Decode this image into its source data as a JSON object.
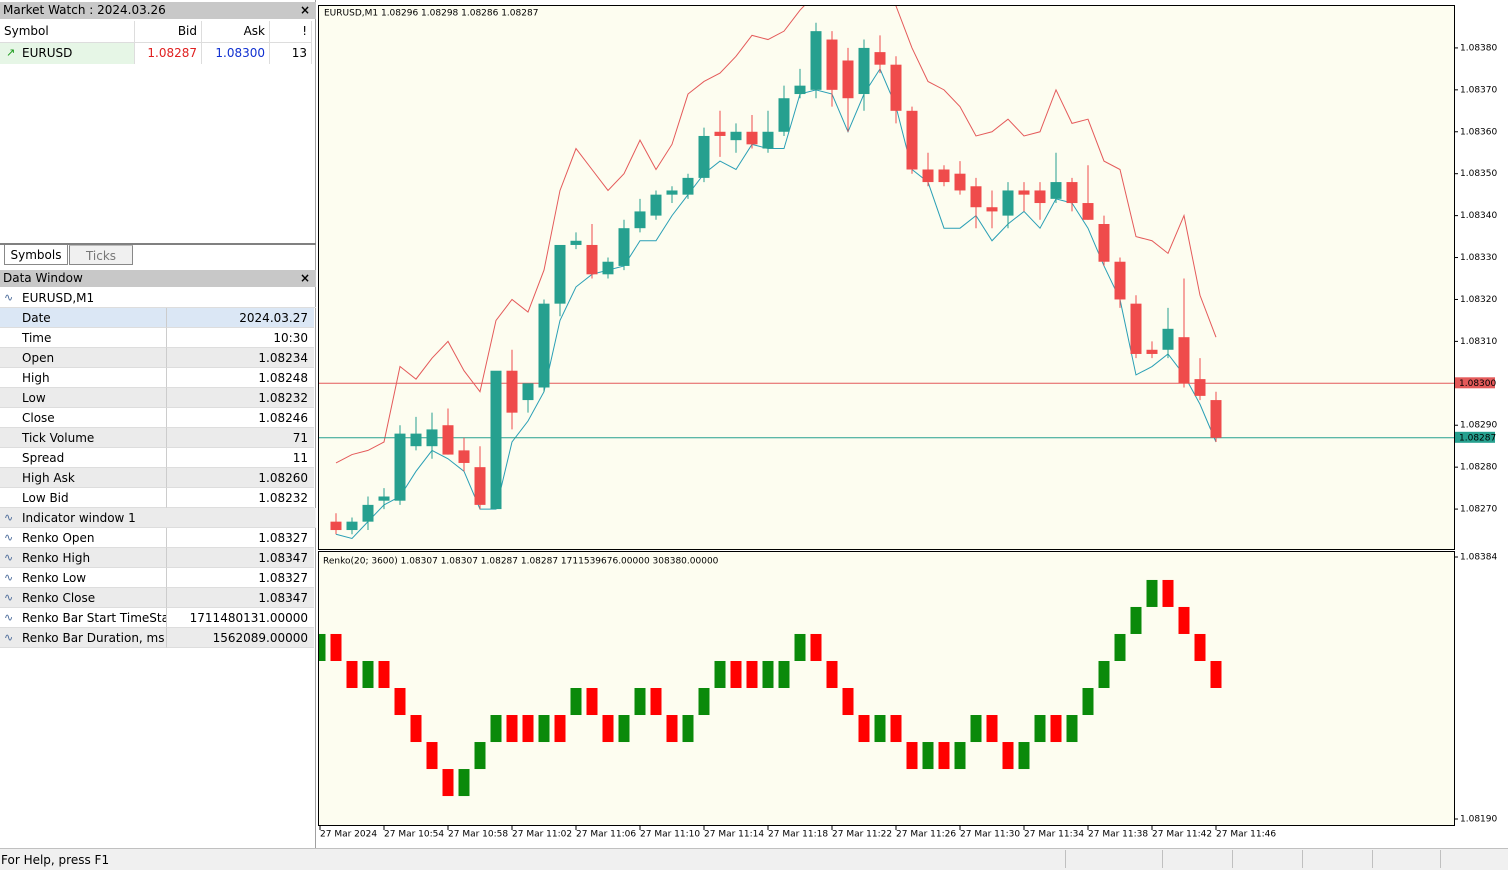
{
  "market_watch": {
    "title": "Market Watch : 2024.03.26",
    "columns": [
      "Symbol",
      "Bid",
      "Ask",
      "!"
    ],
    "row": [
      "EURUSD",
      "1.08287",
      "1.08300",
      "13"
    ],
    "tabs": [
      "Symbols",
      "Ticks"
    ]
  },
  "data_window": {
    "title": "Data Window",
    "symbol": "EURUSD,M1",
    "rows": [
      [
        "Date",
        "2024.03.27"
      ],
      [
        "Time",
        "10:30"
      ],
      [
        "Open",
        "1.08234"
      ],
      [
        "High",
        "1.08248"
      ],
      [
        "Low",
        "1.08232"
      ],
      [
        "Close",
        "1.08246"
      ],
      [
        "Tick Volume",
        "71"
      ],
      [
        "Spread",
        "11"
      ],
      [
        "High Ask",
        "1.08260"
      ],
      [
        "Low Bid",
        "1.08232"
      ]
    ],
    "indicator": "Indicator window 1",
    "indicator_rows": [
      [
        "Renko Open",
        "1.08327"
      ],
      [
        "Renko High",
        "1.08347"
      ],
      [
        "Renko Low",
        "1.08327"
      ],
      [
        "Renko Close",
        "1.08347"
      ],
      [
        "Renko Bar Start TimeSta...",
        "1711480131.00000"
      ],
      [
        "Renko Bar Duration, ms",
        "1562089.00000"
      ]
    ]
  },
  "chart": {
    "type": "candlestick",
    "label": "EURUSD,M1  1.08296 1.08298 1.08286 1.08287",
    "ylim": [
      1.0826,
      1.0839
    ],
    "yticks": [
      {
        "value": 1.0838,
        "label": "1.08380"
      },
      {
        "value": 1.0837,
        "label": "1.08370"
      },
      {
        "value": 1.0836,
        "label": "1.08360"
      },
      {
        "value": 1.0835,
        "label": "1.08350"
      },
      {
        "value": 1.0834,
        "label": "1.08340"
      },
      {
        "value": 1.0833,
        "label": "1.08330"
      },
      {
        "value": 1.0832,
        "label": "1.08320"
      },
      {
        "value": 1.0831,
        "label": "1.08310"
      },
      {
        "value": 1.0829,
        "label": "1.08290"
      },
      {
        "value": 1.0828,
        "label": "1.08280"
      },
      {
        "value": 1.0827,
        "label": "1.08270"
      }
    ],
    "up_color": "#26a08f",
    "down_color": "#ef4b4b",
    "upper_color": "#e45a5a",
    "lower_color": "#2a9fb5",
    "ask_line": {
      "value": 1.083,
      "label": "1.08300",
      "color": "#e45a5a"
    },
    "bid_line": {
      "value": 1.08287,
      "label": "1.08287",
      "color": "#26a08f"
    },
    "candles": {
      "open": [
        1.08267,
        1.08265,
        1.08267,
        1.08272,
        1.08272,
        1.08285,
        1.08285,
        1.0829,
        1.08284,
        1.0828,
        1.0827,
        1.08303,
        1.08296,
        1.08299,
        1.08319,
        1.08333,
        1.08333,
        1.08326,
        1.08328,
        1.08337,
        1.0834,
        1.08345,
        1.08345,
        1.08349,
        1.0836,
        1.08358,
        1.0836,
        1.08356,
        1.0836,
        1.08369,
        1.0837,
        1.08382,
        1.08377,
        1.08369,
        1.08379,
        1.08376,
        1.08365,
        1.08351,
        1.08351,
        1.0835,
        1.08347,
        1.08342,
        1.0834,
        1.08346,
        1.08346,
        1.08344,
        1.08348,
        1.08343,
        1.08338,
        1.08329,
        1.08319,
        1.08308,
        1.08308,
        1.08311,
        1.08301,
        1.08296
      ],
      "high": [
        1.08269,
        1.08268,
        1.08273,
        1.08275,
        1.0829,
        1.08292,
        1.08293,
        1.08294,
        1.08287,
        1.08285,
        1.08283,
        1.08308,
        1.08299,
        1.0832,
        1.08333,
        1.08336,
        1.08338,
        1.0833,
        1.08339,
        1.08344,
        1.08346,
        1.08347,
        1.0835,
        1.08361,
        1.08365,
        1.08362,
        1.08364,
        1.08365,
        1.08371,
        1.08375,
        1.08386,
        1.08384,
        1.0838,
        1.08382,
        1.08383,
        1.08378,
        1.08366,
        1.08355,
        1.08352,
        1.08353,
        1.08349,
        1.08346,
        1.08348,
        1.08348,
        1.08348,
        1.08355,
        1.08349,
        1.08352,
        1.0834,
        1.0833,
        1.08321,
        1.0831,
        1.08318,
        1.08325,
        1.08306,
        1.08298
      ],
      "low": [
        1.08264,
        1.08264,
        1.08265,
        1.0827,
        1.08271,
        1.08284,
        1.08282,
        1.08283,
        1.08279,
        1.0827,
        1.0827,
        1.08289,
        1.08293,
        1.08298,
        1.08316,
        1.08332,
        1.08325,
        1.08325,
        1.08327,
        1.08336,
        1.08339,
        1.08343,
        1.08344,
        1.08348,
        1.08354,
        1.08355,
        1.08356,
        1.08355,
        1.08359,
        1.08368,
        1.08368,
        1.08366,
        1.0836,
        1.08365,
        1.08374,
        1.08362,
        1.0835,
        1.08347,
        1.08347,
        1.08345,
        1.08337,
        1.08337,
        1.08337,
        1.08341,
        1.08339,
        1.08343,
        1.08341,
        1.08339,
        1.08328,
        1.08318,
        1.08306,
        1.08306,
        1.08306,
        1.08299,
        1.08296,
        1.08286
      ],
      "close": [
        1.08265,
        1.08267,
        1.08271,
        1.08273,
        1.08288,
        1.08288,
        1.08289,
        1.08283,
        1.08281,
        1.08271,
        1.08303,
        1.08293,
        1.083,
        1.08319,
        1.08333,
        1.08334,
        1.08326,
        1.08329,
        1.08337,
        1.08341,
        1.08345,
        1.08346,
        1.08349,
        1.08359,
        1.08359,
        1.0836,
        1.08357,
        1.0836,
        1.08368,
        1.08371,
        1.08384,
        1.0837,
        1.08368,
        1.0838,
        1.08376,
        1.08365,
        1.08351,
        1.08348,
        1.08348,
        1.08346,
        1.08342,
        1.08341,
        1.08346,
        1.08345,
        1.08343,
        1.08348,
        1.08343,
        1.08339,
        1.08329,
        1.0832,
        1.08307,
        1.08307,
        1.08313,
        1.083,
        1.08297,
        1.08287
      ]
    },
    "upper_band": [
      1.08281,
      1.08283,
      1.08284,
      1.08286,
      1.08304,
      1.08301,
      1.08306,
      1.0831,
      1.08303,
      1.08298,
      1.08315,
      1.0832,
      1.08317,
      1.08327,
      1.08346,
      1.08356,
      1.08351,
      1.08346,
      1.0835,
      1.08358,
      1.08351,
      1.08357,
      1.08369,
      1.08372,
      1.08374,
      1.08378,
      1.08383,
      1.08382,
      1.08384,
      1.08389,
      1.08393,
      1.08395,
      1.08394,
      1.08393,
      1.08396,
      1.0839,
      1.0838,
      1.08372,
      1.0837,
      1.08366,
      1.08359,
      1.0836,
      1.08363,
      1.08359,
      1.0836,
      1.0837,
      1.08362,
      1.08363,
      1.08353,
      1.08351,
      1.08335,
      1.08334,
      1.08331,
      1.0834,
      1.08321,
      1.08311
    ],
    "lower_band": [
      1.08264,
      1.08263,
      1.08267,
      1.08271,
      1.08273,
      1.08279,
      1.08284,
      1.08282,
      1.08279,
      1.0827,
      1.0827,
      1.08286,
      1.08291,
      1.08298,
      1.08315,
      1.08323,
      1.08326,
      1.08327,
      1.08328,
      1.08334,
      1.08334,
      1.0834,
      1.08345,
      1.0835,
      1.08353,
      1.08351,
      1.08357,
      1.08356,
      1.08356,
      1.08369,
      1.0837,
      1.08369,
      1.0836,
      1.08369,
      1.08375,
      1.08366,
      1.08351,
      1.08348,
      1.08337,
      1.08337,
      1.0834,
      1.08334,
      1.08338,
      1.08341,
      1.08337,
      1.08344,
      1.08343,
      1.08337,
      1.08328,
      1.0832,
      1.08302,
      1.08304,
      1.08307,
      1.08302,
      1.08295,
      1.08286
    ]
  },
  "renko": {
    "type": "renko",
    "label": "Renko(20; 3600) 1.08307 1.08307 1.08287 1.08287 1711539676.00000 308380.00000",
    "ylim": [
      1.0819,
      1.08384
    ],
    "yticks": [
      1.08384,
      {
        "value": 1.0819,
        "label": "1.08190"
      }
    ],
    "up_color": "#0a8a0a",
    "down_color": "#ff0000",
    "open": [
      1.08307,
      1.08327,
      1.08307,
      1.08287,
      1.08307,
      1.08287,
      1.08267,
      1.08247,
      1.08227,
      1.08207,
      1.08227,
      1.08247,
      1.08267,
      1.08267,
      1.08247,
      1.08267,
      1.08267,
      1.08287,
      1.08267,
      1.08247,
      1.08267,
      1.08287,
      1.08267,
      1.08247,
      1.08267,
      1.08287,
      1.08307,
      1.08307,
      1.08287,
      1.08287,
      1.08307,
      1.08327,
      1.08307,
      1.08287,
      1.08267,
      1.08247,
      1.08267,
      1.08247,
      1.08227,
      1.08247,
      1.08227,
      1.08247,
      1.08267,
      1.08247,
      1.08227,
      1.08247,
      1.08267,
      1.08247,
      1.08267,
      1.08287,
      1.08307,
      1.08327,
      1.08347,
      1.08367,
      1.08347,
      1.08327,
      1.08307
    ],
    "close": [
      1.08327,
      1.08307,
      1.08287,
      1.08307,
      1.08287,
      1.08267,
      1.08247,
      1.08227,
      1.08207,
      1.08227,
      1.08247,
      1.08267,
      1.08247,
      1.08247,
      1.08267,
      1.08247,
      1.08287,
      1.08267,
      1.08247,
      1.08267,
      1.08287,
      1.08267,
      1.08247,
      1.08267,
      1.08287,
      1.08307,
      1.08287,
      1.08287,
      1.08307,
      1.08307,
      1.08327,
      1.08307,
      1.08287,
      1.08267,
      1.08247,
      1.08267,
      1.08247,
      1.08227,
      1.08247,
      1.08227,
      1.08247,
      1.08267,
      1.08247,
      1.08227,
      1.08247,
      1.08267,
      1.08247,
      1.08267,
      1.08287,
      1.08307,
      1.08327,
      1.08347,
      1.08367,
      1.08347,
      1.08327,
      1.08307,
      1.08287
    ]
  },
  "x_axis": {
    "labels": [
      "27 Mar 2024",
      "27 Mar 10:54",
      "27 Mar 10:58",
      "27 Mar 11:02",
      "27 Mar 11:06",
      "27 Mar 11:10",
      "27 Mar 11:14",
      "27 Mar 11:18",
      "27 Mar 11:22",
      "27 Mar 11:26",
      "27 Mar 11:30",
      "27 Mar 11:34",
      "27 Mar 11:38",
      "27 Mar 11:42",
      "27 Mar 11:46"
    ]
  },
  "status_bar": {
    "text": "For Help, press F1"
  }
}
